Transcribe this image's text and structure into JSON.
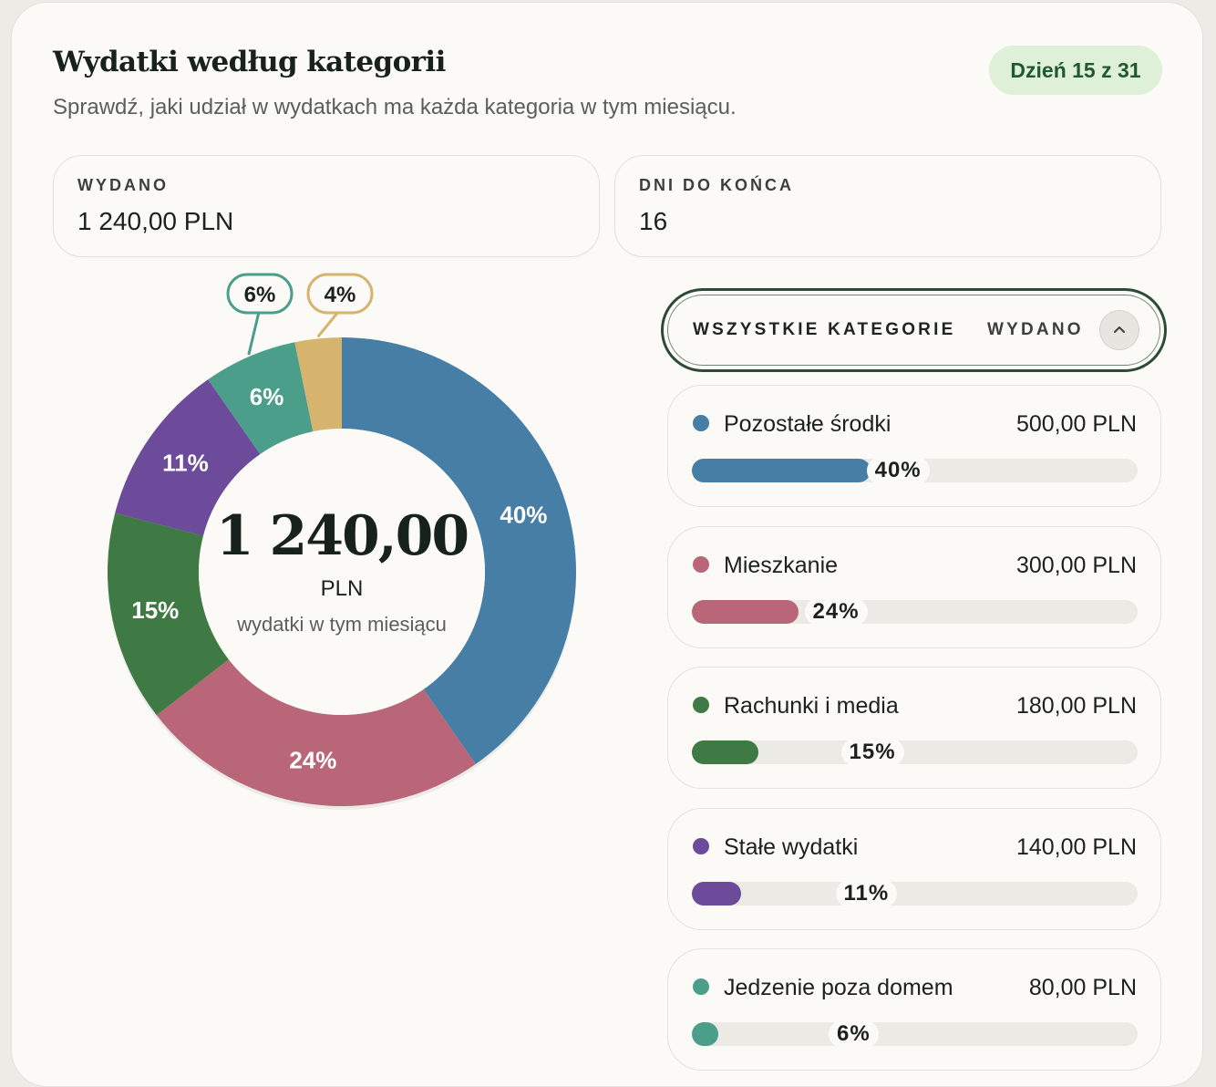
{
  "header": {
    "title": "Wydatki według kategorii",
    "subtitle": "Sprawdź, jaki udział w wydatkach ma każda kategoria w tym miesiącu.",
    "day_badge": "Dzień 15 z 31"
  },
  "stats": {
    "spent_label": "WYDANO",
    "spent_value": "1 240,00 PLN",
    "days_left_label": "DNI DO KOŃCA",
    "days_left_value": "16"
  },
  "donut_center": {
    "amount": "1 240,00",
    "unit": "PLN",
    "caption": "wydatki w tym miesiącu"
  },
  "list_header": {
    "all_label": "WSZYSTKIE KATEGORIE",
    "spent_label": "WYDANO",
    "toggle_icon": "chevron-up-icon"
  },
  "chart_data": {
    "type": "pie",
    "series": [
      {
        "name": "Pozostałe środki",
        "value": 500,
        "amount": "500,00 PLN",
        "pct": 40,
        "pct_label": "40%",
        "color": "#467ea5"
      },
      {
        "name": "Mieszkanie",
        "value": 300,
        "amount": "300,00 PLN",
        "pct": 24,
        "pct_label": "24%",
        "color": "#b96679"
      },
      {
        "name": "Rachunki i media",
        "value": 180,
        "amount": "180,00 PLN",
        "pct": 15,
        "pct_label": "15%",
        "color": "#3f7a44"
      },
      {
        "name": "Stałe wydatki",
        "value": 140,
        "amount": "140,00 PLN",
        "pct": 11,
        "pct_label": "11%",
        "color": "#6c4b9a"
      },
      {
        "name": "Jedzenie poza domem",
        "value": 80,
        "amount": "80,00 PLN",
        "pct": 6,
        "pct_label": "6%",
        "color": "#4b9e8a"
      },
      {
        "name": "",
        "value": 40,
        "amount": "",
        "pct": 4,
        "pct_label": "4%",
        "color": "#d6b46e"
      }
    ]
  }
}
